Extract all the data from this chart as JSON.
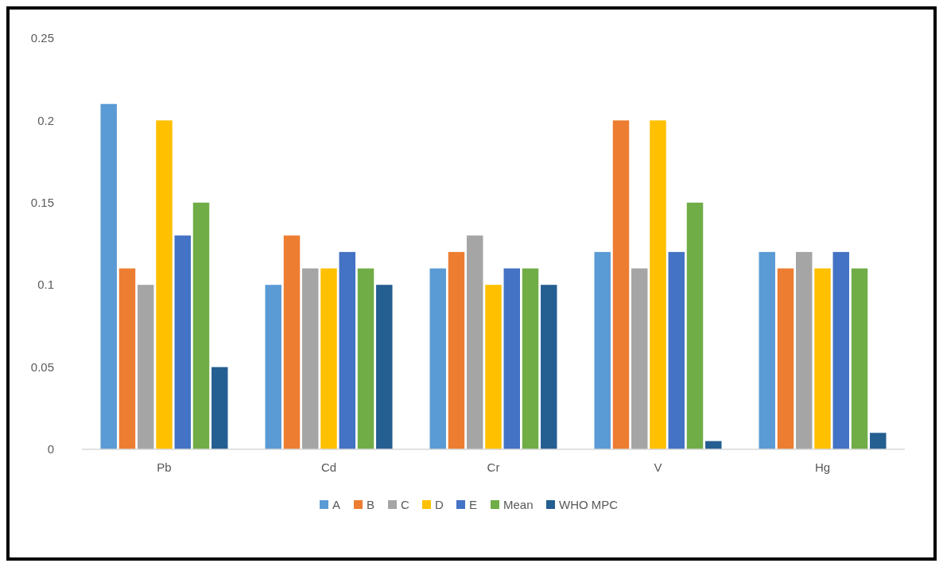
{
  "chart_data": {
    "type": "bar",
    "categories": [
      "Pb",
      "Cd",
      "Cr",
      "V",
      "Hg"
    ],
    "series": [
      {
        "name": "A",
        "color": "#5b9bd5",
        "values": [
          0.21,
          0.1,
          0.11,
          0.12,
          0.12
        ]
      },
      {
        "name": "B",
        "color": "#ed7d31",
        "values": [
          0.11,
          0.13,
          0.12,
          0.2,
          0.11
        ]
      },
      {
        "name": "C",
        "color": "#a5a5a5",
        "values": [
          0.1,
          0.11,
          0.13,
          0.11,
          0.12
        ]
      },
      {
        "name": "D",
        "color": "#ffc000",
        "values": [
          0.2,
          0.11,
          0.1,
          0.2,
          0.11
        ]
      },
      {
        "name": "E",
        "color": "#4472c4",
        "values": [
          0.13,
          0.12,
          0.11,
          0.12,
          0.12
        ]
      },
      {
        "name": "Mean",
        "color": "#70ad47",
        "values": [
          0.15,
          0.11,
          0.11,
          0.15,
          0.11
        ]
      },
      {
        "name": "WHO MPC",
        "color": "#255e91",
        "values": [
          0.05,
          0.1,
          0.1,
          0.005,
          0.01
        ]
      }
    ],
    "ylim": [
      0,
      0.25
    ],
    "yticks": [
      0,
      0.05,
      0.1,
      0.15,
      0.2,
      0.25
    ],
    "grid": false,
    "legend": "bottom"
  }
}
